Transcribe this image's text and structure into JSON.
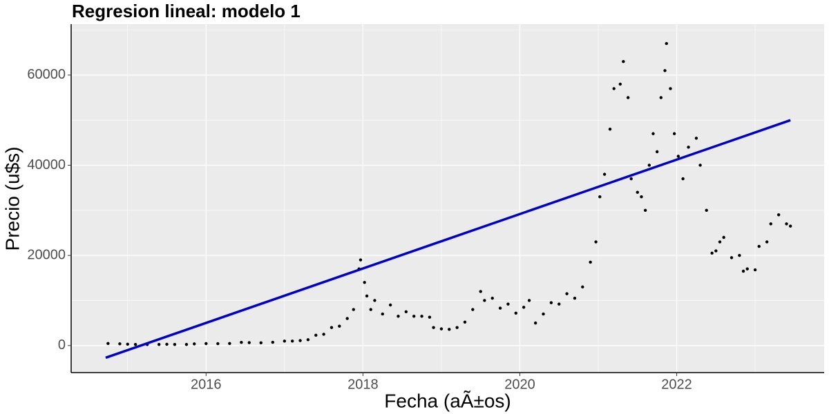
{
  "chart_data": {
    "type": "scatter",
    "title": "Regresion lineal: modelo 1",
    "x_label": "Fecha (aÃ±os)",
    "y_label": "Precio (u$s)",
    "xlim": [
      2014.28,
      2023.88
    ],
    "xticks": [
      2016,
      2018,
      2020,
      2022
    ],
    "ylim": [
      -6000,
      71300
    ],
    "yticks": [
      0,
      20000,
      40000,
      60000
    ],
    "grid": true,
    "series": [
      {
        "type": "scatter",
        "color": "#000000",
        "x": [
          2014.75,
          2014.9,
          2015.0,
          2015.1,
          2015.25,
          2015.4,
          2015.5,
          2015.6,
          2015.75,
          2015.85,
          2016.0,
          2016.15,
          2016.3,
          2016.45,
          2016.55,
          2016.7,
          2016.85,
          2017.0,
          2017.1,
          2017.2,
          2017.3,
          2017.4,
          2017.5,
          2017.6,
          2017.7,
          2017.8,
          2017.88,
          2017.95,
          2017.97,
          2018.02,
          2018.05,
          2018.1,
          2018.15,
          2018.25,
          2018.35,
          2018.45,
          2018.55,
          2018.65,
          2018.75,
          2018.85,
          2018.9,
          2019.0,
          2019.1,
          2019.2,
          2019.3,
          2019.4,
          2019.5,
          2019.55,
          2019.65,
          2019.75,
          2019.85,
          2019.95,
          2020.05,
          2020.12,
          2020.2,
          2020.3,
          2020.4,
          2020.5,
          2020.6,
          2020.7,
          2020.8,
          2020.9,
          2020.97,
          2021.02,
          2021.08,
          2021.15,
          2021.2,
          2021.28,
          2021.32,
          2021.38,
          2021.42,
          2021.5,
          2021.55,
          2021.6,
          2021.65,
          2021.7,
          2021.75,
          2021.8,
          2021.85,
          2021.87,
          2021.92,
          2021.97,
          2022.02,
          2022.08,
          2022.15,
          2022.25,
          2022.3,
          2022.38,
          2022.45,
          2022.5,
          2022.55,
          2022.6,
          2022.7,
          2022.8,
          2022.85,
          2022.9,
          2023.0,
          2023.05,
          2023.15,
          2023.2,
          2023.3,
          2023.4,
          2023.45
        ],
        "values": [
          450,
          380,
          300,
          240,
          230,
          240,
          280,
          240,
          240,
          370,
          430,
          420,
          450,
          700,
          650,
          610,
          730,
          1000,
          1000,
          1100,
          1300,
          2300,
          2500,
          4000,
          4300,
          6000,
          8000,
          17000,
          19000,
          14000,
          11000,
          8000,
          10000,
          7000,
          9000,
          6500,
          7500,
          6500,
          6500,
          6300,
          4000,
          3700,
          3600,
          4000,
          5200,
          8000,
          12000,
          10000,
          10500,
          8300,
          9200,
          7200,
          8500,
          10000,
          5000,
          7000,
          9500,
          9200,
          11500,
          10500,
          13000,
          18500,
          23000,
          33000,
          38000,
          48000,
          57000,
          58000,
          63000,
          55000,
          37000,
          34000,
          33000,
          30000,
          40000,
          47000,
          43000,
          55000,
          61000,
          67000,
          57000,
          47000,
          42000,
          37000,
          44000,
          46000,
          40000,
          30000,
          20500,
          21000,
          23000,
          24000,
          19500,
          20000,
          16500,
          17000,
          16800,
          22000,
          23000,
          27000,
          29000,
          27000,
          26500
        ]
      },
      {
        "type": "line",
        "color": "#0000cd",
        "x": [
          2014.72,
          2023.45
        ],
        "values": [
          -2700,
          50000
        ]
      }
    ]
  }
}
